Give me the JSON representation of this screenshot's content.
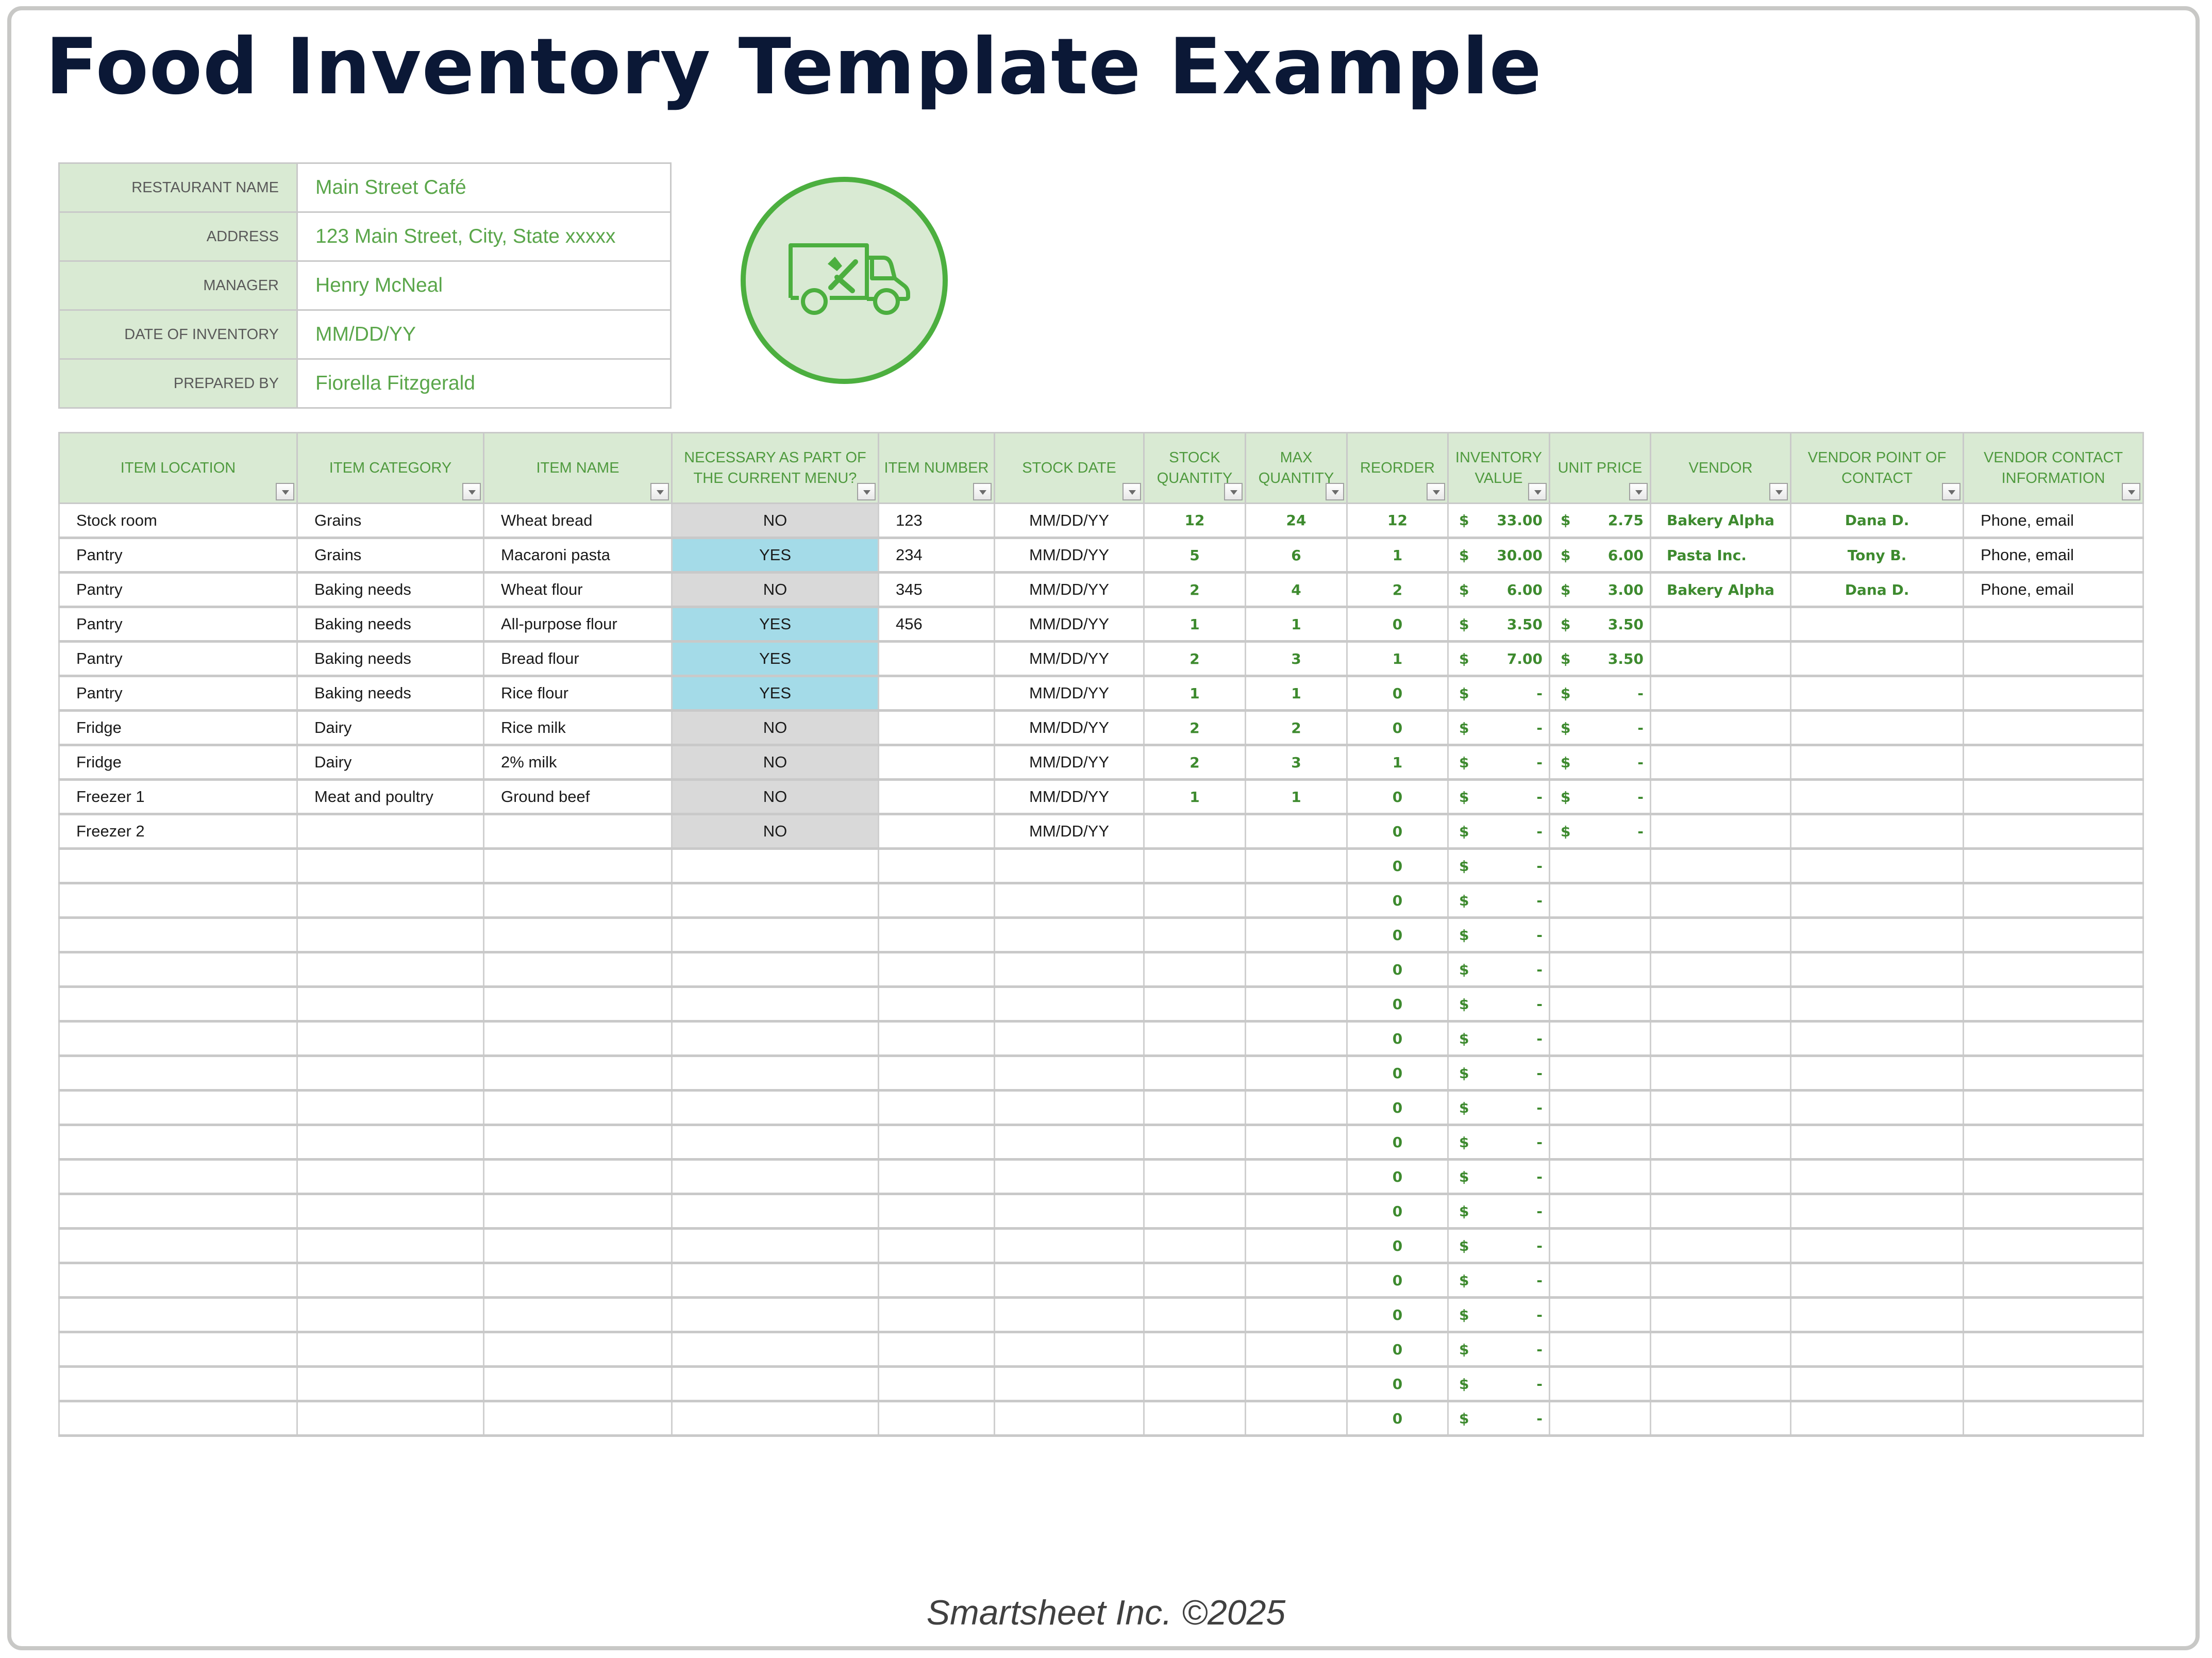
{
  "title": "Food Inventory Template Example",
  "info": [
    {
      "label": "RESTAURANT NAME",
      "value": "Main Street Café"
    },
    {
      "label": "ADDRESS",
      "value": "123 Main Street, City, State xxxxx"
    },
    {
      "label": "MANAGER",
      "value": "Henry McNeal"
    },
    {
      "label": "DATE OF INVENTORY",
      "value": "MM/DD/YY"
    },
    {
      "label": "PREPARED BY",
      "value": "Fiorella Fitzgerald"
    }
  ],
  "logo": {
    "icon": "food-delivery-truck-icon",
    "accent": "#4caf3f",
    "fill": "#d9ead3"
  },
  "colors": {
    "header_bg": "#d9ead3",
    "header_text": "#4f9a3e",
    "yes_bg": "#a4dbe8",
    "no_bg": "#d9d9d9",
    "value_text": "#3d8a2e",
    "title": "#0b1836"
  },
  "columns": [
    "ITEM LOCATION",
    "ITEM CATEGORY",
    "ITEM NAME",
    "NECESSARY AS PART OF THE CURRENT MENU?",
    "ITEM NUMBER",
    "STOCK DATE",
    "STOCK QUANTITY",
    "MAX QUANTITY",
    "REORDER",
    "INVENTORY VALUE",
    "UNIT PRICE",
    "VENDOR",
    "VENDOR POINT OF CONTACT",
    "VENDOR CONTACT INFORMATION"
  ],
  "rows": [
    {
      "location": "Stock room",
      "category": "Grains",
      "name": "Wheat bread",
      "necessary": "NO",
      "number": "123",
      "date": "MM/DD/YY",
      "stock": "12",
      "max": "24",
      "reorder": "12",
      "inv_cur": "$",
      "inv_val": "33.00",
      "price_cur": "$",
      "price_val": "2.75",
      "vendor": "Bakery Alpha",
      "poc": "Dana D.",
      "contact": "Phone, email"
    },
    {
      "location": "Pantry",
      "category": "Grains",
      "name": "Macaroni pasta",
      "necessary": "YES",
      "number": "234",
      "date": "MM/DD/YY",
      "stock": "5",
      "max": "6",
      "reorder": "1",
      "inv_cur": "$",
      "inv_val": "30.00",
      "price_cur": "$",
      "price_val": "6.00",
      "vendor": "Pasta Inc.",
      "poc": "Tony B.",
      "contact": "Phone, email"
    },
    {
      "location": "Pantry",
      "category": "Baking needs",
      "name": "Wheat flour",
      "necessary": "NO",
      "number": "345",
      "date": "MM/DD/YY",
      "stock": "2",
      "max": "4",
      "reorder": "2",
      "inv_cur": "$",
      "inv_val": "6.00",
      "price_cur": "$",
      "price_val": "3.00",
      "vendor": "Bakery Alpha",
      "poc": "Dana D.",
      "contact": "Phone, email"
    },
    {
      "location": "Pantry",
      "category": "Baking needs",
      "name": "All-purpose flour",
      "necessary": "YES",
      "number": "456",
      "date": "MM/DD/YY",
      "stock": "1",
      "max": "1",
      "reorder": "0",
      "inv_cur": "$",
      "inv_val": "3.50",
      "price_cur": "$",
      "price_val": "3.50",
      "vendor": "",
      "poc": "",
      "contact": ""
    },
    {
      "location": "Pantry",
      "category": "Baking needs",
      "name": "Bread flour",
      "necessary": "YES",
      "number": "",
      "date": "MM/DD/YY",
      "stock": "2",
      "max": "3",
      "reorder": "1",
      "inv_cur": "$",
      "inv_val": "7.00",
      "price_cur": "$",
      "price_val": "3.50",
      "vendor": "",
      "poc": "",
      "contact": ""
    },
    {
      "location": "Pantry",
      "category": "Baking needs",
      "name": "Rice flour",
      "necessary": "YES",
      "number": "",
      "date": "MM/DD/YY",
      "stock": "1",
      "max": "1",
      "reorder": "0",
      "inv_cur": "$",
      "inv_val": "-",
      "price_cur": "$",
      "price_val": "-",
      "vendor": "",
      "poc": "",
      "contact": ""
    },
    {
      "location": "Fridge",
      "category": "Dairy",
      "name": "Rice milk",
      "necessary": "NO",
      "number": "",
      "date": "MM/DD/YY",
      "stock": "2",
      "max": "2",
      "reorder": "0",
      "inv_cur": "$",
      "inv_val": "-",
      "price_cur": "$",
      "price_val": "-",
      "vendor": "",
      "poc": "",
      "contact": ""
    },
    {
      "location": "Fridge",
      "category": "Dairy",
      "name": "2% milk",
      "necessary": "NO",
      "number": "",
      "date": "MM/DD/YY",
      "stock": "2",
      "max": "3",
      "reorder": "1",
      "inv_cur": "$",
      "inv_val": "-",
      "price_cur": "$",
      "price_val": "-",
      "vendor": "",
      "poc": "",
      "contact": ""
    },
    {
      "location": "Freezer 1",
      "category": "Meat and poultry",
      "name": "Ground beef",
      "necessary": "NO",
      "number": "",
      "date": "MM/DD/YY",
      "stock": "1",
      "max": "1",
      "reorder": "0",
      "inv_cur": "$",
      "inv_val": "-",
      "price_cur": "$",
      "price_val": "-",
      "vendor": "",
      "poc": "",
      "contact": ""
    },
    {
      "location": "Freezer 2",
      "category": "",
      "name": "",
      "necessary": "NO",
      "number": "",
      "date": "MM/DD/YY",
      "stock": "",
      "max": "",
      "reorder": "0",
      "inv_cur": "$",
      "inv_val": "-",
      "price_cur": "$",
      "price_val": "-",
      "vendor": "",
      "poc": "",
      "contact": ""
    },
    {
      "reorder": "0",
      "inv_cur": "$",
      "inv_val": "-"
    },
    {
      "reorder": "0",
      "inv_cur": "$",
      "inv_val": "-"
    },
    {
      "reorder": "0",
      "inv_cur": "$",
      "inv_val": "-"
    },
    {
      "reorder": "0",
      "inv_cur": "$",
      "inv_val": "-"
    },
    {
      "reorder": "0",
      "inv_cur": "$",
      "inv_val": "-"
    },
    {
      "reorder": "0",
      "inv_cur": "$",
      "inv_val": "-"
    },
    {
      "reorder": "0",
      "inv_cur": "$",
      "inv_val": "-"
    },
    {
      "reorder": "0",
      "inv_cur": "$",
      "inv_val": "-"
    },
    {
      "reorder": "0",
      "inv_cur": "$",
      "inv_val": "-"
    },
    {
      "reorder": "0",
      "inv_cur": "$",
      "inv_val": "-"
    },
    {
      "reorder": "0",
      "inv_cur": "$",
      "inv_val": "-"
    },
    {
      "reorder": "0",
      "inv_cur": "$",
      "inv_val": "-"
    },
    {
      "reorder": "0",
      "inv_cur": "$",
      "inv_val": "-"
    },
    {
      "reorder": "0",
      "inv_cur": "$",
      "inv_val": "-"
    },
    {
      "reorder": "0",
      "inv_cur": "$",
      "inv_val": "-"
    },
    {
      "reorder": "0",
      "inv_cur": "$",
      "inv_val": "-"
    },
    {
      "reorder": "0",
      "inv_cur": "$",
      "inv_val": "-"
    }
  ],
  "footer": "Smartsheet Inc. ©2025"
}
